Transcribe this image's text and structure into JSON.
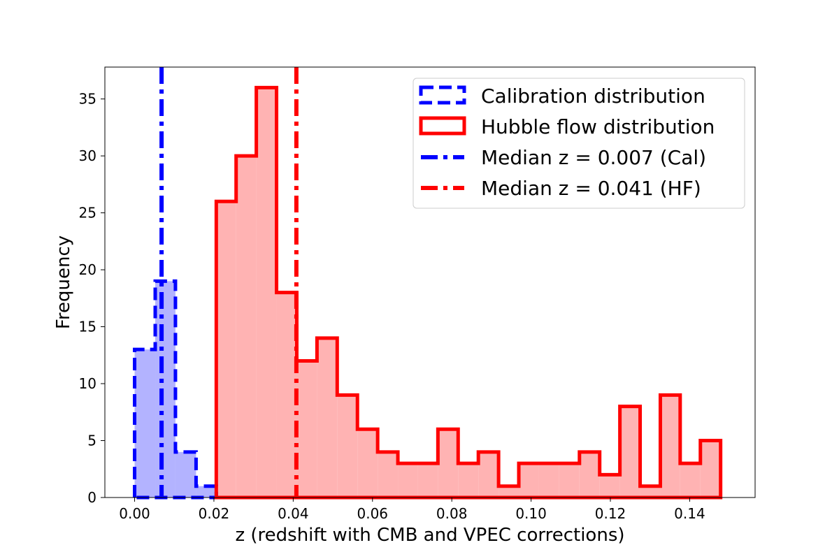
{
  "chart_data": {
    "type": "histogram",
    "xlabel": "z (redshift with CMB and VPEC corrections)",
    "ylabel": "Frequency",
    "xlim": [
      -0.0075,
      0.1565
    ],
    "ylim": [
      0,
      37.8
    ],
    "x_ticks": [
      0.0,
      0.02,
      0.04,
      0.06,
      0.08,
      0.1,
      0.12,
      0.14
    ],
    "x_tick_labels": [
      "0.00",
      "0.02",
      "0.04",
      "0.06",
      "0.08",
      "0.10",
      "0.12",
      "0.14"
    ],
    "y_ticks": [
      0,
      5,
      10,
      15,
      20,
      25,
      30,
      35
    ],
    "y_tick_labels": [
      "0",
      "5",
      "10",
      "15",
      "20",
      "25",
      "30",
      "35"
    ],
    "series": [
      {
        "name": "Calibration distribution",
        "style": "dashed-step",
        "color": "#0000ff",
        "fill": "#b3b3ff",
        "bin_edges": [
          0.0,
          0.0052,
          0.0103,
          0.0155,
          0.0206
        ],
        "counts": [
          13,
          19,
          4,
          1
        ]
      },
      {
        "name": "Hubble flow distribution",
        "style": "solid-step",
        "color": "#ff0000",
        "fill": "#ffb3b3",
        "bin_edges": [
          0.0206,
          0.0256,
          0.0307,
          0.0358,
          0.0409,
          0.046,
          0.0511,
          0.0562,
          0.0613,
          0.0664,
          0.0714,
          0.0765,
          0.0816,
          0.0867,
          0.0918,
          0.0969,
          0.102,
          0.1071,
          0.1122,
          0.1173,
          0.1224,
          0.1275,
          0.1326,
          0.1376,
          0.1427,
          0.1478
        ],
        "counts": [
          26,
          30,
          36,
          18,
          12,
          14,
          9,
          6,
          4,
          3,
          3,
          6,
          3,
          4,
          1,
          3,
          3,
          3,
          4,
          2,
          8,
          1,
          9,
          3,
          5
        ]
      }
    ],
    "median_lines": [
      {
        "name": "Median z = 0.007 (Cal)",
        "value": 0.0068,
        "color": "#0000ff"
      },
      {
        "name": "Median z = 0.041 (HF)",
        "value": 0.0408,
        "color": "#ff0000"
      }
    ],
    "legend": {
      "placement": "top-right",
      "entries": [
        "Calibration distribution",
        "Hubble flow distribution",
        "Median z = 0.007 (Cal)",
        "Median z = 0.041 (HF)"
      ]
    }
  }
}
